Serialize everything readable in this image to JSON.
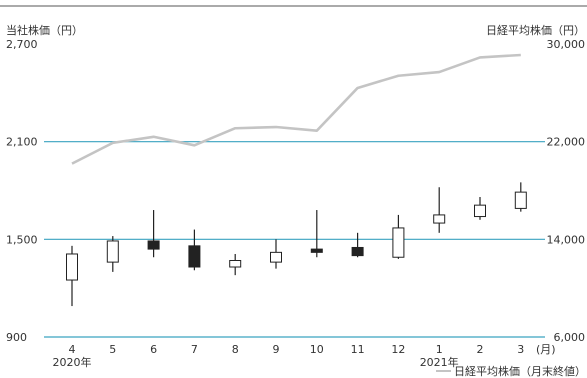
{
  "chart_data": {
    "type": "candlestick",
    "left_axis": {
      "label": "当社株価（円）",
      "ticks": [
        {
          "value": 900,
          "label": "900"
        },
        {
          "value": 1500,
          "label": "1,500"
        },
        {
          "value": 2100,
          "label": "2,100"
        },
        {
          "value": 2700,
          "label": "2,700"
        }
      ],
      "range": [
        900,
        2700
      ]
    },
    "right_axis": {
      "label": "日経平均株価（円）",
      "ticks": [
        {
          "value": 6000,
          "label": "6,000"
        },
        {
          "value": 14000,
          "label": "14,000"
        },
        {
          "value": 22000,
          "label": "22,000"
        },
        {
          "value": 30000,
          "label": "30,000"
        }
      ],
      "range": [
        6000,
        30000
      ]
    },
    "x_unit": "(月)",
    "categories": [
      "4",
      "5",
      "6",
      "7",
      "8",
      "9",
      "10",
      "11",
      "12",
      "1",
      "2",
      "3"
    ],
    "year_labels": [
      {
        "index": 0,
        "label": "2020年"
      },
      {
        "index": 9,
        "label": "2021年"
      }
    ],
    "candles": [
      {
        "open": 1250,
        "high": 1460,
        "low": 1090,
        "close": 1410
      },
      {
        "open": 1360,
        "high": 1520,
        "low": 1300,
        "close": 1490
      },
      {
        "open": 1490,
        "high": 1680,
        "low": 1390,
        "close": 1440
      },
      {
        "open": 1460,
        "high": 1560,
        "low": 1310,
        "close": 1330
      },
      {
        "open": 1330,
        "high": 1410,
        "low": 1280,
        "close": 1370
      },
      {
        "open": 1360,
        "high": 1500,
        "low": 1320,
        "close": 1420
      },
      {
        "open": 1440,
        "high": 1680,
        "low": 1390,
        "close": 1420
      },
      {
        "open": 1450,
        "high": 1540,
        "low": 1390,
        "close": 1400
      },
      {
        "open": 1390,
        "high": 1650,
        "low": 1380,
        "close": 1570
      },
      {
        "open": 1600,
        "high": 1820,
        "low": 1540,
        "close": 1650
      },
      {
        "open": 1640,
        "high": 1760,
        "low": 1620,
        "close": 1710
      },
      {
        "open": 1690,
        "high": 1850,
        "low": 1670,
        "close": 1790
      }
    ],
    "nikkei": {
      "name": "日経平均株価（月末終値）",
      "values": [
        20200,
        21900,
        22400,
        21700,
        23100,
        23200,
        22900,
        26400,
        27400,
        27700,
        28900,
        29100
      ]
    },
    "colors": {
      "grid": "#3aa3c0",
      "nikkei_line": "#c4c4c4",
      "candle_up_fill": "#ffffff",
      "candle_down_fill": "#222222",
      "candle_stroke": "#222222",
      "top_rule": "#555555"
    }
  }
}
